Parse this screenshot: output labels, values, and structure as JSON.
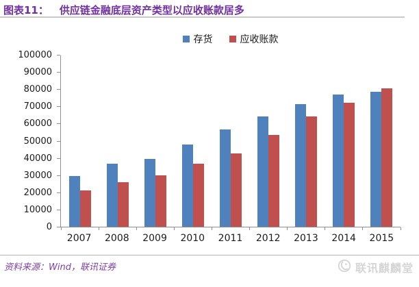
{
  "header": {
    "chart_label": "图表11：",
    "title": "供应链金融底层资产类型以应收账款居多"
  },
  "chart_data": {
    "type": "bar",
    "title": "供应链金融底层资产类型以应收账款居多",
    "categories": [
      "2007",
      "2008",
      "2009",
      "2010",
      "2011",
      "2012",
      "2013",
      "2014",
      "2015"
    ],
    "series": [
      {
        "key": "inventory",
        "name": "存货",
        "color": "#4F81BD",
        "values": [
          29500,
          36500,
          39500,
          48000,
          56500,
          64000,
          71500,
          77000,
          78500
        ]
      },
      {
        "key": "receivables",
        "name": "应收账款",
        "color": "#C0504D",
        "values": [
          21000,
          26000,
          30000,
          36500,
          42500,
          53500,
          64000,
          72000,
          80500
        ]
      }
    ],
    "xlabel": "",
    "ylabel": "",
    "ylim": [
      0,
      100000
    ],
    "ytick_step": 10000,
    "grid": false,
    "legend_position": "top-center"
  },
  "footer": {
    "source": "资料来源：Wind，联讯证券"
  },
  "watermark": {
    "text": "联讯麒麟堂",
    "icon": "qilin-logo-icon",
    "color": "#d5d5d5"
  },
  "colors": {
    "title_purple": "#7030A0",
    "footer_purple": "#8040A8",
    "axis_gray": "#8f8f8f",
    "series_blue": "#4F81BD",
    "series_red": "#C0504D"
  }
}
